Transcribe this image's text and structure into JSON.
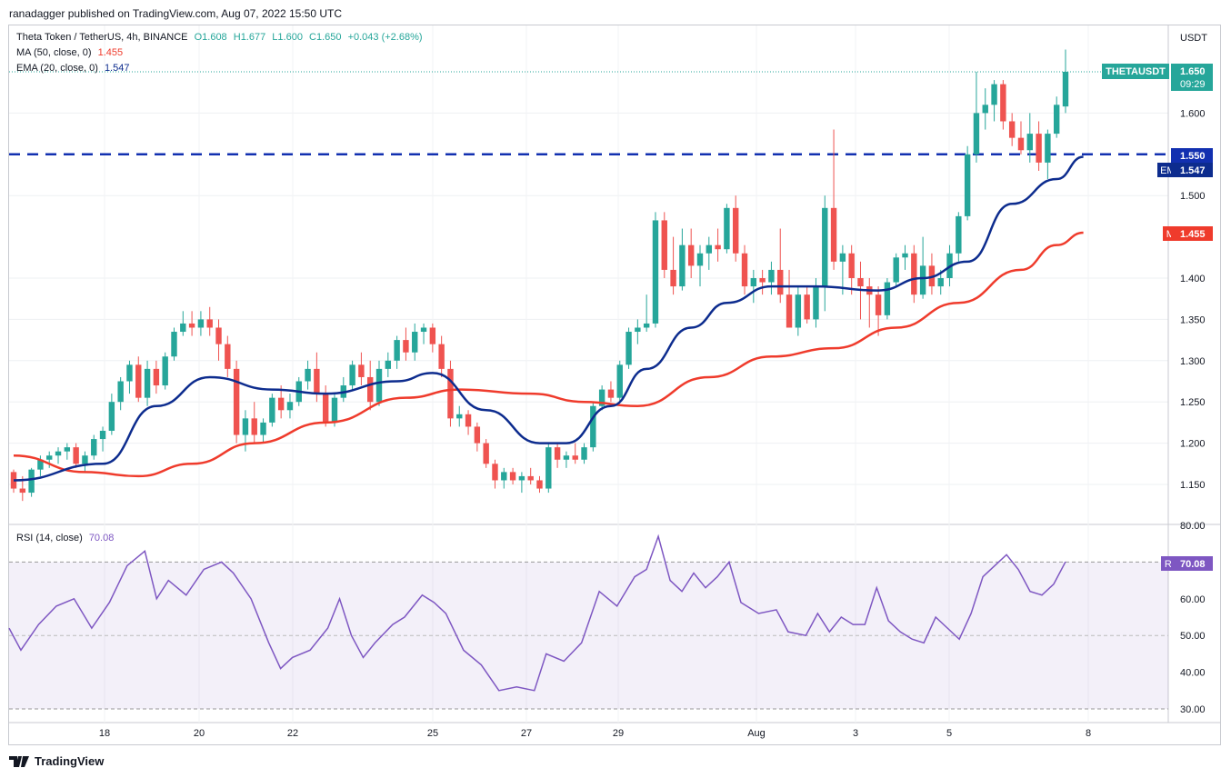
{
  "header": {
    "published_text": "ranadagger published on TradingView.com, Aug 07, 2022 15:50 UTC"
  },
  "legend": {
    "symbol": "Theta Token / TetherUS, 4h, BINANCE",
    "ohlc": {
      "o": "O1.608",
      "h": "H1.677",
      "l": "L1.600",
      "c": "C1.650",
      "chg": "+0.043 (+2.68%)"
    },
    "ma_label": "MA (50, close, 0)",
    "ma_value": "1.455",
    "ema_label": "EMA (20, close, 0)",
    "ema_value": "1.547",
    "rsi_label": "RSI (14, close)",
    "rsi_value": "70.08"
  },
  "price_axis": {
    "unit": "USDT",
    "ticks": [
      "1.600",
      "1.500",
      "1.400",
      "1.350",
      "1.300",
      "1.250",
      "1.200",
      "1.150"
    ],
    "badges": {
      "symbol": "THETAUSDT",
      "last": "1.650",
      "countdown": "09:29",
      "level": "1.550",
      "ema_tag": "EMA",
      "ema_val": "1.547",
      "ma_tag": "MA",
      "ma_val": "1.455"
    }
  },
  "rsi_axis": {
    "ticks": [
      "80.00",
      "60.00",
      "50.00",
      "40.00",
      "30.00"
    ],
    "badge_tag": "RSI",
    "badge_val": "70.08"
  },
  "time_axis": {
    "ticks": [
      "18",
      "20",
      "22",
      "25",
      "27",
      "29",
      "Aug",
      "3",
      "5",
      "8"
    ]
  },
  "footer": {
    "brand": "TradingView"
  },
  "colors": {
    "up": "#26a69a",
    "down": "#ef5350",
    "ema": "#0d2c8e",
    "ma": "#ef3b2c",
    "rsi": "#7e57c2",
    "level": "#1230b0"
  },
  "chart_data": {
    "type": "candlestick",
    "title": "Theta Token / TetherUS, 4h, BINANCE",
    "y_unit": "USDT",
    "ylim": [
      1.12,
      1.69
    ],
    "x_dates": [
      "Jul 16",
      "Jul 17",
      "Jul 18",
      "Jul 19",
      "Jul 20",
      "Jul 21",
      "Jul 22",
      "Jul 23",
      "Jul 24",
      "Jul 25",
      "Jul 26",
      "Jul 27",
      "Jul 28",
      "Jul 29",
      "Jul 30",
      "Jul 31",
      "Aug 1",
      "Aug 2",
      "Aug 3",
      "Aug 4",
      "Aug 5",
      "Aug 6",
      "Aug 7"
    ],
    "candles_ohlc": [
      [
        1.165,
        1.168,
        1.14,
        1.145
      ],
      [
        1.145,
        1.16,
        1.13,
        1.14
      ],
      [
        1.14,
        1.17,
        1.135,
        1.168
      ],
      [
        1.168,
        1.185,
        1.16,
        1.18
      ],
      [
        1.18,
        1.19,
        1.17,
        1.185
      ],
      [
        1.185,
        1.195,
        1.175,
        1.19
      ],
      [
        1.19,
        1.2,
        1.18,
        1.195
      ],
      [
        1.195,
        1.2,
        1.17,
        1.175
      ],
      [
        1.175,
        1.19,
        1.165,
        1.185
      ],
      [
        1.185,
        1.21,
        1.18,
        1.205
      ],
      [
        1.205,
        1.22,
        1.19,
        1.215
      ],
      [
        1.215,
        1.26,
        1.21,
        1.25
      ],
      [
        1.25,
        1.28,
        1.24,
        1.275
      ],
      [
        1.275,
        1.3,
        1.26,
        1.295
      ],
      [
        1.295,
        1.305,
        1.25,
        1.255
      ],
      [
        1.255,
        1.3,
        1.245,
        1.29
      ],
      [
        1.29,
        1.3,
        1.26,
        1.27
      ],
      [
        1.27,
        1.31,
        1.265,
        1.305
      ],
      [
        1.305,
        1.34,
        1.3,
        1.335
      ],
      [
        1.335,
        1.36,
        1.33,
        1.345
      ],
      [
        1.345,
        1.36,
        1.33,
        1.34
      ],
      [
        1.34,
        1.36,
        1.33,
        1.35
      ],
      [
        1.35,
        1.365,
        1.33,
        1.34
      ],
      [
        1.34,
        1.35,
        1.3,
        1.32
      ],
      [
        1.32,
        1.33,
        1.28,
        1.29
      ],
      [
        1.29,
        1.3,
        1.2,
        1.21
      ],
      [
        1.21,
        1.24,
        1.19,
        1.23
      ],
      [
        1.23,
        1.25,
        1.2,
        1.21
      ],
      [
        1.21,
        1.23,
        1.2,
        1.225
      ],
      [
        1.225,
        1.26,
        1.22,
        1.255
      ],
      [
        1.255,
        1.27,
        1.23,
        1.24
      ],
      [
        1.24,
        1.26,
        1.23,
        1.25
      ],
      [
        1.25,
        1.28,
        1.245,
        1.275
      ],
      [
        1.275,
        1.3,
        1.265,
        1.29
      ],
      [
        1.29,
        1.31,
        1.25,
        1.26
      ],
      [
        1.26,
        1.27,
        1.22,
        1.225
      ],
      [
        1.225,
        1.26,
        1.22,
        1.255
      ],
      [
        1.255,
        1.28,
        1.25,
        1.27
      ],
      [
        1.27,
        1.3,
        1.265,
        1.295
      ],
      [
        1.295,
        1.31,
        1.27,
        1.28
      ],
      [
        1.28,
        1.3,
        1.24,
        1.25
      ],
      [
        1.25,
        1.3,
        1.245,
        1.29
      ],
      [
        1.29,
        1.31,
        1.28,
        1.3
      ],
      [
        1.3,
        1.33,
        1.29,
        1.325
      ],
      [
        1.325,
        1.34,
        1.3,
        1.31
      ],
      [
        1.31,
        1.345,
        1.3,
        1.335
      ],
      [
        1.335,
        1.345,
        1.32,
        1.34
      ],
      [
        1.34,
        1.345,
        1.31,
        1.32
      ],
      [
        1.32,
        1.33,
        1.28,
        1.29
      ],
      [
        1.29,
        1.3,
        1.22,
        1.23
      ],
      [
        1.23,
        1.245,
        1.22,
        1.235
      ],
      [
        1.235,
        1.24,
        1.21,
        1.22
      ],
      [
        1.22,
        1.225,
        1.19,
        1.2
      ],
      [
        1.2,
        1.205,
        1.17,
        1.175
      ],
      [
        1.175,
        1.18,
        1.145,
        1.155
      ],
      [
        1.155,
        1.17,
        1.145,
        1.165
      ],
      [
        1.165,
        1.17,
        1.15,
        1.155
      ],
      [
        1.155,
        1.165,
        1.14,
        1.16
      ],
      [
        1.16,
        1.17,
        1.15,
        1.155
      ],
      [
        1.155,
        1.16,
        1.14,
        1.145
      ],
      [
        1.145,
        1.2,
        1.14,
        1.195
      ],
      [
        1.195,
        1.2,
        1.17,
        1.18
      ],
      [
        1.18,
        1.19,
        1.17,
        1.185
      ],
      [
        1.185,
        1.2,
        1.175,
        1.18
      ],
      [
        1.18,
        1.2,
        1.175,
        1.195
      ],
      [
        1.195,
        1.25,
        1.19,
        1.245
      ],
      [
        1.245,
        1.27,
        1.24,
        1.265
      ],
      [
        1.265,
        1.275,
        1.25,
        1.255
      ],
      [
        1.255,
        1.3,
        1.25,
        1.295
      ],
      [
        1.295,
        1.34,
        1.29,
        1.335
      ],
      [
        1.335,
        1.35,
        1.32,
        1.34
      ],
      [
        1.34,
        1.38,
        1.335,
        1.345
      ],
      [
        1.345,
        1.48,
        1.34,
        1.47
      ],
      [
        1.47,
        1.48,
        1.4,
        1.41
      ],
      [
        1.41,
        1.45,
        1.38,
        1.39
      ],
      [
        1.39,
        1.46,
        1.385,
        1.44
      ],
      [
        1.44,
        1.46,
        1.4,
        1.415
      ],
      [
        1.415,
        1.44,
        1.39,
        1.43
      ],
      [
        1.43,
        1.45,
        1.41,
        1.44
      ],
      [
        1.44,
        1.46,
        1.42,
        1.435
      ],
      [
        1.435,
        1.49,
        1.43,
        1.485
      ],
      [
        1.485,
        1.5,
        1.42,
        1.43
      ],
      [
        1.43,
        1.44,
        1.38,
        1.39
      ],
      [
        1.39,
        1.41,
        1.37,
        1.4
      ],
      [
        1.4,
        1.41,
        1.38,
        1.395
      ],
      [
        1.395,
        1.42,
        1.38,
        1.41
      ],
      [
        1.41,
        1.46,
        1.37,
        1.38
      ],
      [
        1.38,
        1.41,
        1.34,
        1.34
      ],
      [
        1.34,
        1.39,
        1.33,
        1.38
      ],
      [
        1.38,
        1.39,
        1.345,
        1.35
      ],
      [
        1.35,
        1.4,
        1.34,
        1.39
      ],
      [
        1.39,
        1.5,
        1.36,
        1.485
      ],
      [
        1.485,
        1.58,
        1.41,
        1.42
      ],
      [
        1.42,
        1.44,
        1.38,
        1.43
      ],
      [
        1.43,
        1.44,
        1.38,
        1.4
      ],
      [
        1.4,
        1.42,
        1.35,
        1.39
      ],
      [
        1.39,
        1.4,
        1.34,
        1.38
      ],
      [
        1.38,
        1.39,
        1.33,
        1.355
      ],
      [
        1.355,
        1.4,
        1.35,
        1.395
      ],
      [
        1.395,
        1.43,
        1.39,
        1.425
      ],
      [
        1.425,
        1.44,
        1.41,
        1.43
      ],
      [
        1.43,
        1.44,
        1.37,
        1.38
      ],
      [
        1.38,
        1.45,
        1.375,
        1.415
      ],
      [
        1.415,
        1.43,
        1.38,
        1.39
      ],
      [
        1.39,
        1.41,
        1.38,
        1.4
      ],
      [
        1.4,
        1.44,
        1.39,
        1.43
      ],
      [
        1.43,
        1.48,
        1.42,
        1.475
      ],
      [
        1.475,
        1.56,
        1.47,
        1.55
      ],
      [
        1.55,
        1.65,
        1.54,
        1.6
      ],
      [
        1.6,
        1.63,
        1.58,
        1.61
      ],
      [
        1.61,
        1.64,
        1.59,
        1.635
      ],
      [
        1.635,
        1.64,
        1.58,
        1.59
      ],
      [
        1.59,
        1.6,
        1.56,
        1.57
      ],
      [
        1.57,
        1.59,
        1.55,
        1.555
      ],
      [
        1.555,
        1.6,
        1.54,
        1.575
      ],
      [
        1.575,
        1.59,
        1.53,
        1.54
      ],
      [
        1.54,
        1.58,
        1.52,
        1.575
      ],
      [
        1.575,
        1.62,
        1.57,
        1.61
      ],
      [
        1.608,
        1.677,
        1.6,
        1.65
      ]
    ],
    "ema20_anchor": [
      [
        0,
        1.155
      ],
      [
        10,
        1.175
      ],
      [
        16,
        1.245
      ],
      [
        22,
        1.28
      ],
      [
        29,
        1.265
      ],
      [
        35,
        1.26
      ],
      [
        43,
        1.275
      ],
      [
        47,
        1.285
      ],
      [
        53,
        1.24
      ],
      [
        59,
        1.2
      ],
      [
        62,
        1.2
      ],
      [
        67,
        1.245
      ],
      [
        71,
        1.29
      ],
      [
        76,
        1.34
      ],
      [
        80,
        1.37
      ],
      [
        85,
        1.39
      ],
      [
        90,
        1.39
      ],
      [
        97,
        1.385
      ],
      [
        102,
        1.4
      ],
      [
        107,
        1.42
      ],
      [
        112,
        1.49
      ],
      [
        117,
        1.52
      ],
      [
        120,
        1.547
      ]
    ],
    "ma50_anchor": [
      [
        0,
        1.185
      ],
      [
        8,
        1.165
      ],
      [
        14,
        1.16
      ],
      [
        20,
        1.175
      ],
      [
        27,
        1.2
      ],
      [
        35,
        1.225
      ],
      [
        44,
        1.255
      ],
      [
        50,
        1.265
      ],
      [
        58,
        1.26
      ],
      [
        64,
        1.25
      ],
      [
        70,
        1.245
      ],
      [
        78,
        1.28
      ],
      [
        85,
        1.305
      ],
      [
        92,
        1.315
      ],
      [
        99,
        1.34
      ],
      [
        106,
        1.37
      ],
      [
        113,
        1.41
      ],
      [
        117,
        1.44
      ],
      [
        120,
        1.455
      ]
    ],
    "support_level": 1.55,
    "rsi": {
      "name": "RSI (14, close)",
      "ylim": [
        28,
        82
      ],
      "anchor": [
        [
          0,
          52
        ],
        [
          2,
          46
        ],
        [
          5,
          53
        ],
        [
          8,
          58
        ],
        [
          11,
          60
        ],
        [
          14,
          52
        ],
        [
          17,
          59
        ],
        [
          20,
          69
        ],
        [
          23,
          73
        ],
        [
          25,
          60
        ],
        [
          27,
          65
        ],
        [
          30,
          61
        ],
        [
          33,
          68
        ],
        [
          36,
          70
        ],
        [
          38,
          67
        ],
        [
          41,
          60
        ],
        [
          44,
          48
        ],
        [
          46,
          41
        ],
        [
          48,
          44
        ],
        [
          51,
          46
        ],
        [
          54,
          52
        ],
        [
          56,
          60
        ],
        [
          58,
          50
        ],
        [
          60,
          44
        ],
        [
          62,
          48
        ],
        [
          65,
          53
        ],
        [
          67,
          55
        ],
        [
          70,
          61
        ],
        [
          72,
          59
        ],
        [
          74,
          56
        ],
        [
          77,
          46
        ],
        [
          80,
          42
        ],
        [
          83,
          35
        ],
        [
          86,
          36
        ],
        [
          89,
          35
        ],
        [
          91,
          45
        ],
        [
          94,
          43
        ],
        [
          97,
          48
        ],
        [
          100,
          62
        ],
        [
          103,
          58
        ],
        [
          106,
          66
        ],
        [
          108,
          68
        ],
        [
          110,
          77
        ],
        [
          112,
          65
        ],
        [
          114,
          62
        ],
        [
          116,
          67
        ],
        [
          118,
          63
        ],
        [
          120,
          66
        ],
        [
          122,
          70
        ],
        [
          124,
          59
        ],
        [
          127,
          56
        ],
        [
          130,
          57
        ],
        [
          132,
          51
        ],
        [
          135,
          50
        ],
        [
          137,
          56
        ],
        [
          139,
          51
        ],
        [
          141,
          55
        ],
        [
          143,
          53
        ],
        [
          145,
          53
        ],
        [
          147,
          63
        ],
        [
          149,
          54
        ],
        [
          151,
          51
        ],
        [
          153,
          49
        ],
        [
          155,
          48
        ],
        [
          157,
          55
        ],
        [
          159,
          52
        ],
        [
          161,
          49
        ],
        [
          163,
          56
        ],
        [
          165,
          66
        ],
        [
          167,
          69
        ],
        [
          169,
          72
        ],
        [
          171,
          68
        ],
        [
          173,
          62
        ],
        [
          175,
          61
        ],
        [
          177,
          64
        ],
        [
          179,
          70.08
        ]
      ]
    }
  }
}
